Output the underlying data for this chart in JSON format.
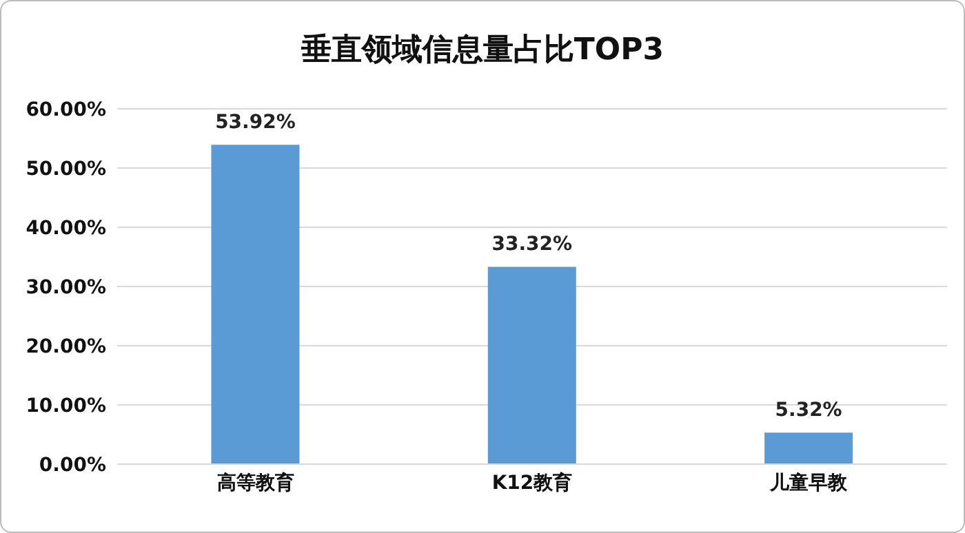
{
  "chart_data": {
    "type": "bar",
    "title": "垂直领域信息量占比TOP3",
    "categories": [
      "高等教育",
      "K12教育",
      "儿童早教"
    ],
    "values": [
      53.92,
      33.32,
      5.32
    ],
    "value_labels": [
      "53.92%",
      "33.32%",
      "5.32%"
    ],
    "color": "#5b9bd5",
    "ylim": [
      0,
      60
    ],
    "yticks": [
      {
        "value": 0,
        "label": "0.00%"
      },
      {
        "value": 10,
        "label": "10.00%"
      },
      {
        "value": 20,
        "label": "20.00%"
      },
      {
        "value": 30,
        "label": "30.00%"
      },
      {
        "value": 40,
        "label": "40.00%"
      },
      {
        "value": 50,
        "label": "50.00%"
      },
      {
        "value": 60,
        "label": "60.00%"
      }
    ],
    "grid": "y"
  }
}
